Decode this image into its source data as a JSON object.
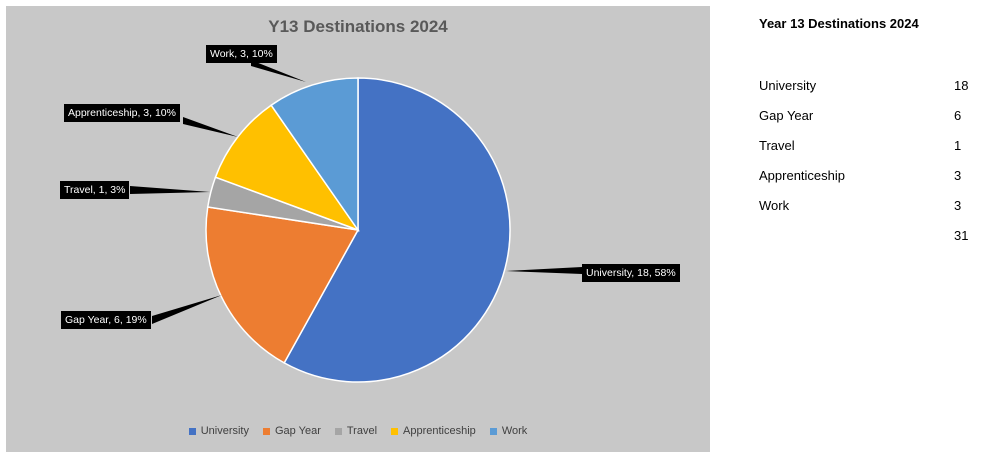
{
  "chart_data": {
    "type": "pie",
    "title": "Y13 Destinations 2024",
    "categories": [
      "University",
      "Gap Year",
      "Travel",
      "Apprenticeship",
      "Work"
    ],
    "values": [
      18,
      6,
      1,
      3,
      3
    ],
    "data_labels": [
      "University, 18, 58%",
      "Gap Year, 6, 19%",
      "Travel, 1, 3%",
      "Apprenticeship, 3, 10%",
      "Work, 3, 10%"
    ],
    "colors": [
      "#4472c4",
      "#ed7d31",
      "#a5a5a5",
      "#ffc000",
      "#5b9bd5"
    ],
    "legend_position": "bottom"
  },
  "side_table": {
    "title": "Year 13 Destinations 2024",
    "rows": [
      {
        "label": "University",
        "value": "18"
      },
      {
        "label": "Gap Year",
        "value": "6"
      },
      {
        "label": "Travel",
        "value": "1"
      },
      {
        "label": "Apprenticeship",
        "value": "3"
      },
      {
        "label": "Work",
        "value": "3"
      }
    ],
    "total": "31"
  }
}
